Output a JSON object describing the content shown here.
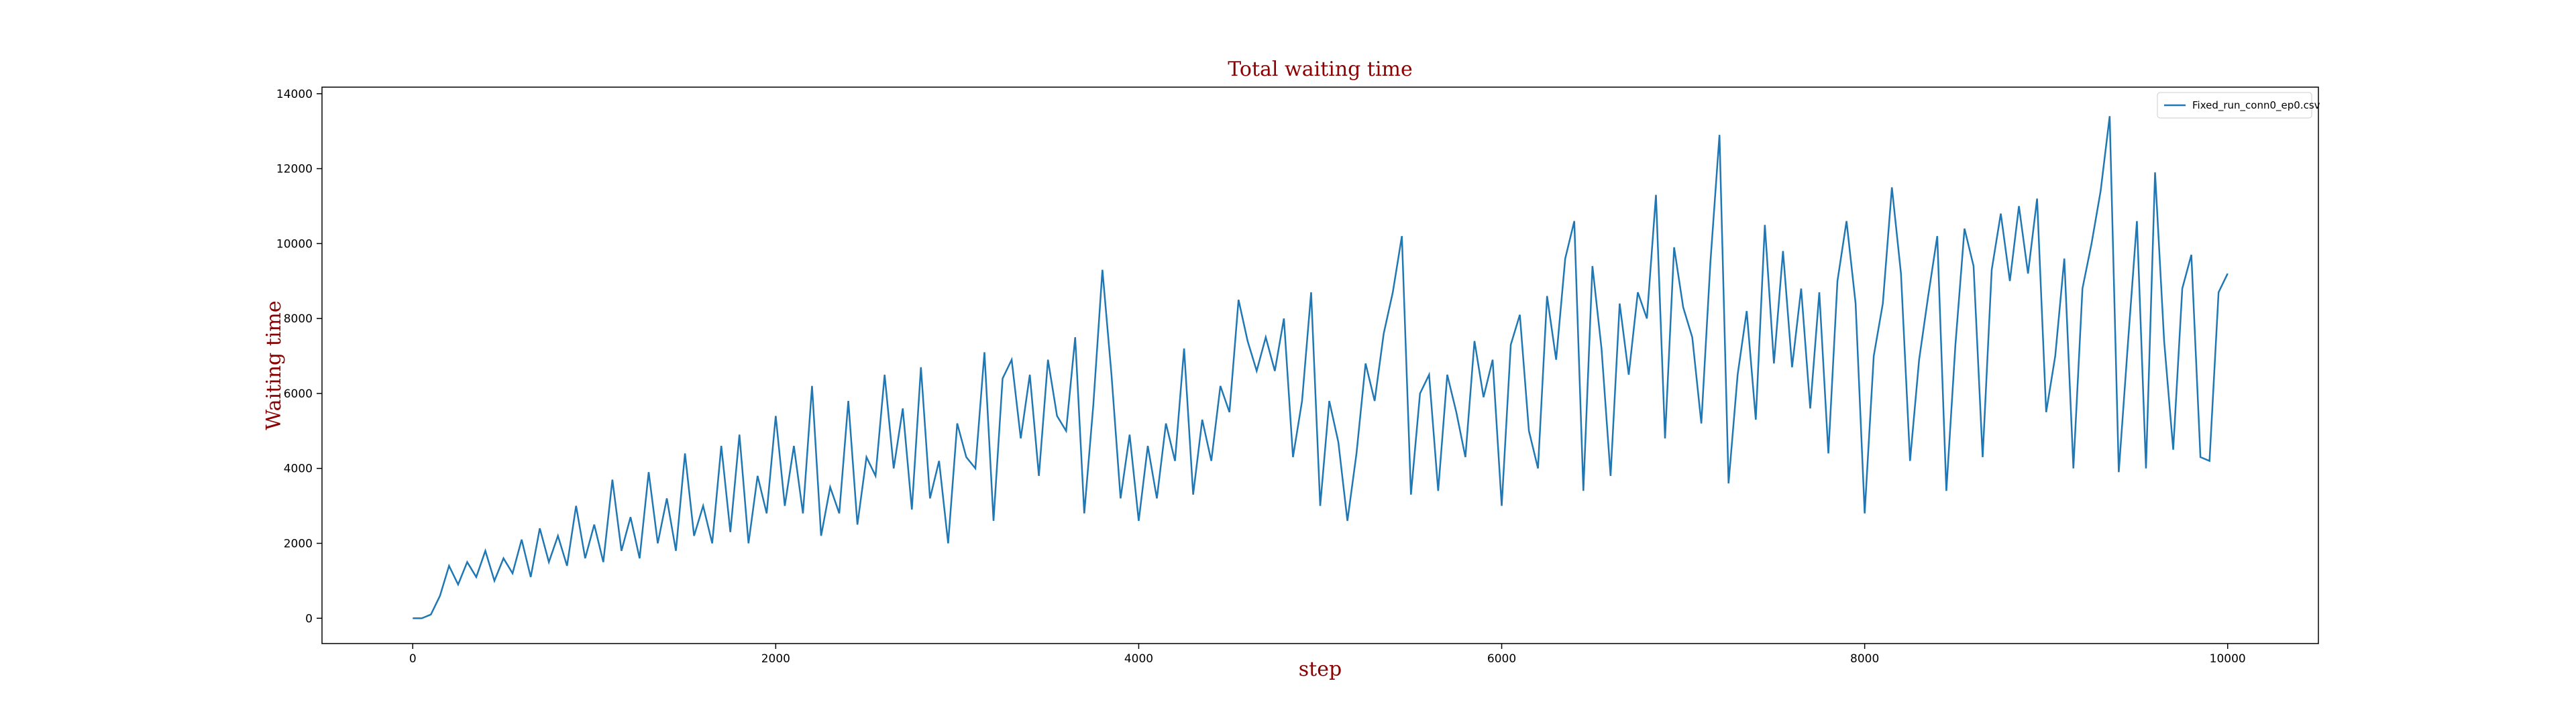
{
  "chart_data": {
    "type": "line",
    "title": "Total waiting time",
    "x_label": "step",
    "y_label": "Waiting time",
    "legend": "upper right",
    "grid": false,
    "xlim": [
      -500,
      10500
    ],
    "ylim": [
      -675,
      14175
    ],
    "xticks": [
      0,
      2000,
      4000,
      6000,
      8000,
      10000
    ],
    "yticks": [
      0,
      2000,
      4000,
      6000,
      8000,
      10000,
      12000,
      14000
    ],
    "x": [
      0,
      50,
      100,
      150,
      200,
      250,
      300,
      350,
      400,
      450,
      500,
      550,
      600,
      650,
      700,
      750,
      800,
      850,
      900,
      950,
      1000,
      1050,
      1100,
      1150,
      1200,
      1250,
      1300,
      1350,
      1400,
      1450,
      1500,
      1550,
      1600,
      1650,
      1700,
      1750,
      1800,
      1850,
      1900,
      1950,
      2000,
      2050,
      2100,
      2150,
      2200,
      2250,
      2300,
      2350,
      2400,
      2450,
      2500,
      2550,
      2600,
      2650,
      2700,
      2750,
      2800,
      2850,
      2900,
      2950,
      3000,
      3050,
      3100,
      3150,
      3200,
      3250,
      3300,
      3350,
      3400,
      3450,
      3500,
      3550,
      3600,
      3650,
      3700,
      3750,
      3800,
      3850,
      3900,
      3950,
      4000,
      4050,
      4100,
      4150,
      4200,
      4250,
      4300,
      4350,
      4400,
      4450,
      4500,
      4550,
      4600,
      4650,
      4700,
      4750,
      4800,
      4850,
      4900,
      4950,
      5000,
      5050,
      5100,
      5150,
      5200,
      5250,
      5300,
      5350,
      5400,
      5450,
      5500,
      5550,
      5600,
      5650,
      5700,
      5750,
      5800,
      5850,
      5900,
      5950,
      6000,
      6050,
      6100,
      6150,
      6200,
      6250,
      6300,
      6350,
      6400,
      6450,
      6500,
      6550,
      6600,
      6650,
      6700,
      6750,
      6800,
      6850,
      6900,
      6950,
      7000,
      7050,
      7100,
      7150,
      7200,
      7250,
      7300,
      7350,
      7400,
      7450,
      7500,
      7550,
      7600,
      7650,
      7700,
      7750,
      7800,
      7850,
      7900,
      7950,
      8000,
      8050,
      8100,
      8150,
      8200,
      8250,
      8300,
      8350,
      8400,
      8450,
      8500,
      8550,
      8600,
      8650,
      8700,
      8750,
      8800,
      8850,
      8900,
      8950,
      9000,
      9050,
      9100,
      9150,
      9200,
      9250,
      9300,
      9350,
      9400,
      9450,
      9500,
      9550,
      9600,
      9650,
      9700,
      9750,
      9800,
      9850,
      9900,
      9950,
      10000
    ],
    "series": [
      {
        "name": "Fixed_run_conn0_ep0.csv",
        "color": "#1f77b4",
        "values": [
          0,
          0,
          100,
          600,
          1400,
          900,
          1500,
          1100,
          1800,
          1000,
          1600,
          1200,
          2100,
          1100,
          2400,
          1500,
          2200,
          1400,
          3000,
          1600,
          2500,
          1500,
          3700,
          1800,
          2700,
          1600,
          3900,
          2000,
          3200,
          1800,
          4400,
          2200,
          3000,
          2000,
          4600,
          2300,
          4900,
          2000,
          3800,
          2800,
          5400,
          3000,
          4600,
          2800,
          6200,
          2200,
          3500,
          2800,
          5800,
          2500,
          4300,
          3800,
          6500,
          4000,
          5600,
          2900,
          6700,
          3200,
          4200,
          2000,
          5200,
          4300,
          4000,
          7100,
          2600,
          6400,
          6900,
          4800,
          6500,
          3800,
          6900,
          5400,
          5000,
          7500,
          2800,
          5700,
          9300,
          6500,
          3200,
          4900,
          2600,
          4600,
          3200,
          5200,
          4200,
          7200,
          3300,
          5300,
          4200,
          6200,
          5500,
          8500,
          7400,
          6600,
          7500,
          6600,
          8000,
          4300,
          5800,
          8700,
          3000,
          5800,
          4700,
          2600,
          4400,
          6800,
          5800,
          7600,
          8700,
          10200,
          3300,
          6000,
          6500,
          3400,
          6500,
          5500,
          4300,
          7400,
          5900,
          6900,
          3000,
          7300,
          8100,
          5000,
          4000,
          8600,
          6900,
          9600,
          10600,
          3400,
          9400,
          7200,
          3800,
          8400,
          6500,
          8700,
          8000,
          11300,
          4800,
          9900,
          8300,
          7500,
          5200,
          9500,
          12900,
          3600,
          6500,
          8200,
          5300,
          10500,
          6800,
          9800,
          6700,
          8800,
          5600,
          8700,
          4400,
          9000,
          10600,
          8400,
          2800,
          7000,
          8400,
          11500,
          9200,
          4200,
          6900,
          8600,
          10200,
          3400,
          7300,
          10400,
          9400,
          4300,
          9300,
          10800,
          9000,
          11000,
          9200,
          11200,
          5500,
          7000,
          9600,
          4000,
          8800,
          10000,
          11400,
          13400,
          3900,
          7300,
          10600,
          4000,
          11900,
          7400,
          4500,
          8800,
          9700,
          4300,
          4200,
          8700,
          9200
        ]
      }
    ]
  }
}
